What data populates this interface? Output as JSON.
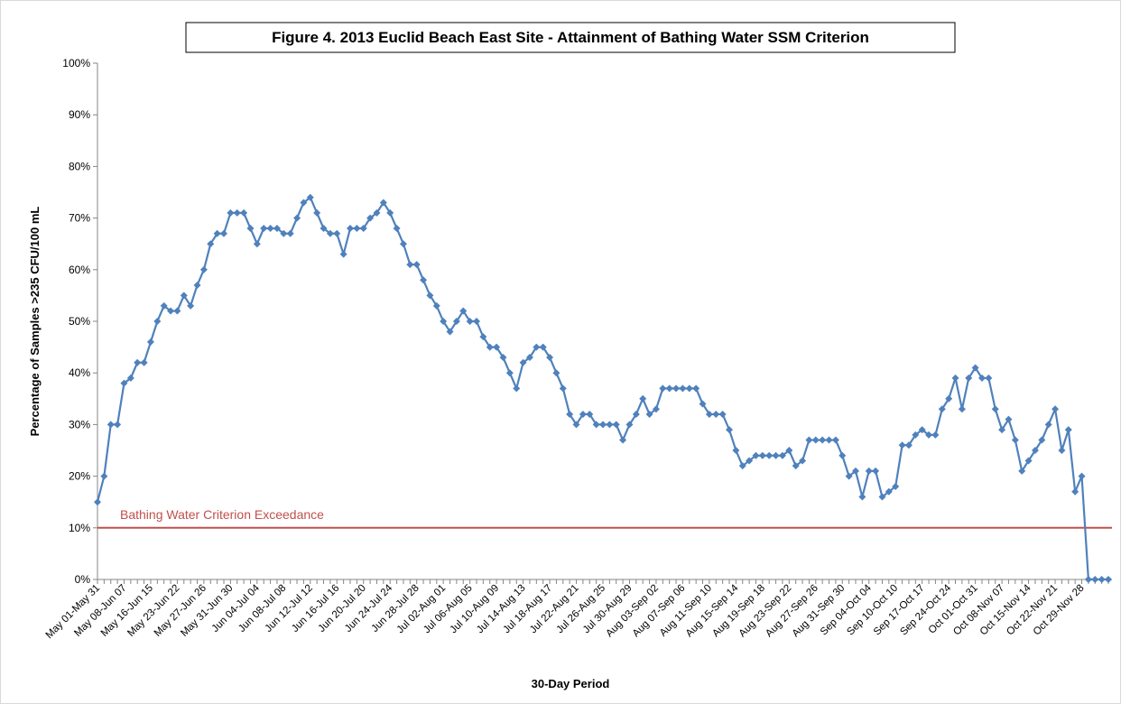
{
  "chart_data": {
    "type": "line",
    "title": "Figure 4. 2013 Euclid Beach East Site - Attainment of Bathing Water SSM Criterion",
    "x_label": "30-Day Period",
    "y_label": "Percentage of Samples >235 CFU/100 mL",
    "categories": [
      "May 01-May 31",
      null,
      null,
      null,
      "May 08-Jun 07",
      null,
      null,
      null,
      "May 16-Jun 15",
      null,
      null,
      null,
      "May 23-Jun 22",
      null,
      null,
      null,
      "May 27-Jun 26",
      null,
      null,
      null,
      "May 31-Jun 30",
      null,
      null,
      null,
      "Jun 04-Jul 04",
      null,
      null,
      null,
      "Jun 08-Jul 08",
      null,
      null,
      null,
      "Jun 12-Jul 12",
      null,
      null,
      null,
      "Jun 16-Jul 16",
      null,
      null,
      null,
      "Jun 20-Jul 20",
      null,
      null,
      null,
      "Jun 24-Jul 24",
      null,
      null,
      null,
      "Jun 28-Jul 28",
      null,
      null,
      null,
      "Jul 02-Aug 01",
      null,
      null,
      null,
      "Jul 06-Aug 05",
      null,
      null,
      null,
      "Jul 10-Aug 09",
      null,
      null,
      null,
      "Jul 14-Aug 13",
      null,
      null,
      null,
      "Jul 18-Aug 17",
      null,
      null,
      null,
      "Jul 22-Aug 21",
      null,
      null,
      null,
      "Jul 26-Aug 25",
      null,
      null,
      null,
      "Jul 30-Aug 29",
      null,
      null,
      null,
      "Aug 03-Sep 02",
      null,
      null,
      null,
      "Aug 07-Sep 06",
      null,
      null,
      null,
      "Aug 11-Sep 10",
      null,
      null,
      null,
      "Aug 15-Sep 14",
      null,
      null,
      null,
      "Aug 19-Sep 18",
      null,
      null,
      null,
      "Aug 23-Sep 22",
      null,
      null,
      null,
      "Aug 27-Sep 26",
      null,
      null,
      null,
      "Aug 31-Sep 30",
      null,
      null,
      null,
      "Sep 04-Oct 04",
      null,
      null,
      null,
      "Sep 10-Oct 10",
      null,
      null,
      null,
      "Sep 17-Oct 17",
      null,
      null,
      null,
      "Sep 24-Oct 24",
      null,
      null,
      null,
      "Oct 01-Oct 31",
      null,
      null,
      null,
      "Oct 08-Nov 07",
      null,
      null,
      null,
      "Oct 15-Nov 14",
      null,
      null,
      null,
      "Oct 22-Nov 21",
      null,
      null,
      null,
      "Oct 29-Nov 28",
      null,
      null,
      null,
      null
    ],
    "series": [
      {
        "color": "#4f81bd",
        "values": [
          15,
          20,
          30,
          30,
          38,
          39,
          42,
          42,
          46,
          50,
          53,
          52,
          52,
          55,
          53,
          57,
          60,
          65,
          67,
          67,
          71,
          71,
          71,
          68,
          65,
          68,
          68,
          68,
          67,
          67,
          70,
          73,
          74,
          71,
          68,
          67,
          67,
          63,
          68,
          68,
          68,
          70,
          71,
          73,
          71,
          68,
          65,
          61,
          61,
          58,
          55,
          53,
          50,
          48,
          50,
          52,
          50,
          50,
          47,
          45,
          45,
          43,
          40,
          37,
          42,
          43,
          45,
          45,
          43,
          40,
          37,
          32,
          30,
          32,
          32,
          30,
          30,
          30,
          30,
          27,
          30,
          32,
          35,
          32,
          33,
          37,
          37,
          37,
          37,
          37,
          37,
          34,
          32,
          32,
          32,
          29,
          25,
          22,
          23,
          24,
          24,
          24,
          24,
          24,
          25,
          22,
          23,
          27,
          27,
          27,
          27,
          27,
          24,
          20,
          21,
          16,
          21,
          21,
          16,
          17,
          18,
          26,
          26,
          28,
          29,
          28,
          28,
          33,
          35,
          39,
          33,
          39,
          41,
          39,
          39,
          33,
          29,
          31,
          27,
          21,
          23,
          25,
          27,
          30,
          33,
          25,
          29,
          17,
          20,
          0,
          0,
          0,
          0
        ]
      }
    ],
    "reference_line": {
      "value": 10,
      "label": "Bathing Water Criterion Exceedance",
      "color": "#c0504d"
    },
    "ylim": [
      0,
      100
    ],
    "yticks": [
      {
        "value": 0,
        "label": "0%"
      },
      {
        "value": 10,
        "label": "10%"
      },
      {
        "value": 20,
        "label": "20%"
      },
      {
        "value": 30,
        "label": "30%"
      },
      {
        "value": 40,
        "label": "40%"
      },
      {
        "value": 50,
        "label": "50%"
      },
      {
        "value": 60,
        "label": "60%"
      },
      {
        "value": 70,
        "label": "70%"
      },
      {
        "value": 80,
        "label": "80%"
      },
      {
        "value": 90,
        "label": "90%"
      },
      {
        "value": 100,
        "label": "100%"
      }
    ],
    "grid": false
  }
}
